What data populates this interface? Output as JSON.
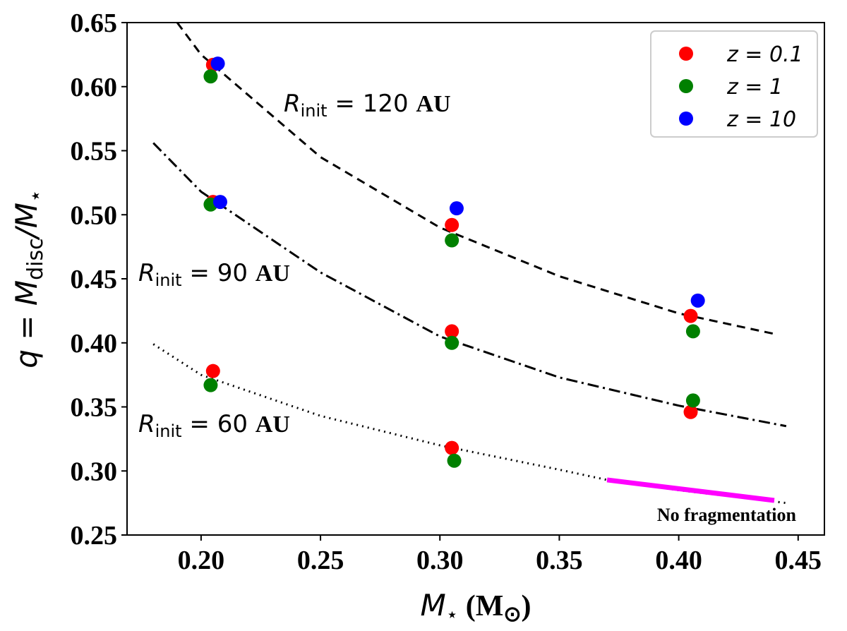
{
  "chart_data": {
    "type": "scatter",
    "x_label": [
      "M",
      "⋆",
      " (M",
      "⊙",
      ")"
    ],
    "y_label": [
      "q",
      " = ",
      "M",
      "disc",
      "/M",
      "⋆"
    ],
    "xlim": [
      0.169,
      0.461
    ],
    "ylim": [
      0.25,
      0.65
    ],
    "xticks": [
      {
        "value": 0.2,
        "label": "0.20"
      },
      0.25,
      {
        "value": 0.3,
        "label": "0.30"
      },
      0.35,
      {
        "value": 0.4,
        "label": "0.40"
      },
      0.45
    ],
    "yticks": [
      0.25,
      {
        "value": 0.3,
        "label": "0.30"
      },
      0.35,
      {
        "value": 0.4,
        "label": "0.40"
      },
      0.45,
      {
        "value": 0.5,
        "label": "0.50"
      },
      0.55,
      {
        "value": 0.6,
        "label": "0.60"
      },
      0.65
    ],
    "legend": "upper right",
    "series": [
      {
        "name": "z = 0.1",
        "color": "#ff0000",
        "x": [
          0.205,
          0.205,
          0.205,
          0.305,
          0.305,
          0.305,
          0.405,
          0.405
        ],
        "values": [
          0.617,
          0.51,
          0.378,
          0.492,
          0.409,
          0.318,
          0.421,
          0.346
        ]
      },
      {
        "name": "z = 1",
        "color": "#008000",
        "x": [
          0.204,
          0.204,
          0.204,
          0.305,
          0.305,
          0.306,
          0.406,
          0.406
        ],
        "values": [
          0.608,
          0.508,
          0.367,
          0.48,
          0.4,
          0.308,
          0.409,
          0.355
        ]
      },
      {
        "name": "z = 10",
        "color": "#0000ff",
        "x": [
          0.207,
          0.208,
          0.307,
          0.408
        ],
        "values": [
          0.618,
          0.51,
          0.505,
          0.433
        ]
      }
    ],
    "curves": [
      {
        "style": "dashed",
        "color": "#000000",
        "x": [
          0.19,
          0.2,
          0.25,
          0.3,
          0.35,
          0.4,
          0.44
        ],
        "values": [
          0.65,
          0.625,
          0.545,
          0.49,
          0.452,
          0.423,
          0.407
        ]
      },
      {
        "style": "dashdot",
        "color": "#000000",
        "x": [
          0.18,
          0.2,
          0.25,
          0.3,
          0.35,
          0.4,
          0.445
        ],
        "values": [
          0.556,
          0.518,
          0.455,
          0.405,
          0.373,
          0.351,
          0.335
        ]
      },
      {
        "style": "dotted",
        "color": "#000000",
        "x": [
          0.18,
          0.2,
          0.25,
          0.3,
          0.35,
          0.37,
          0.4,
          0.445
        ],
        "values": [
          0.399,
          0.375,
          0.343,
          0.32,
          0.301,
          0.293,
          0.285,
          0.275
        ]
      },
      {
        "style": "solid",
        "color": "#ff00ff",
        "x": [
          0.37,
          0.44
        ],
        "values": [
          0.293,
          0.277
        ]
      }
    ],
    "annotations": [
      {
        "symbol": "R",
        "subscript": "init",
        "text": " = 120 ",
        "unit": "AU"
      },
      {
        "symbol": "R",
        "subscript": "init",
        "text": " = 90 ",
        "unit": "AU"
      },
      {
        "symbol": "R",
        "subscript": "init",
        "text": " = 60 ",
        "unit": "AU"
      }
    ],
    "note": "No fragmentation"
  }
}
